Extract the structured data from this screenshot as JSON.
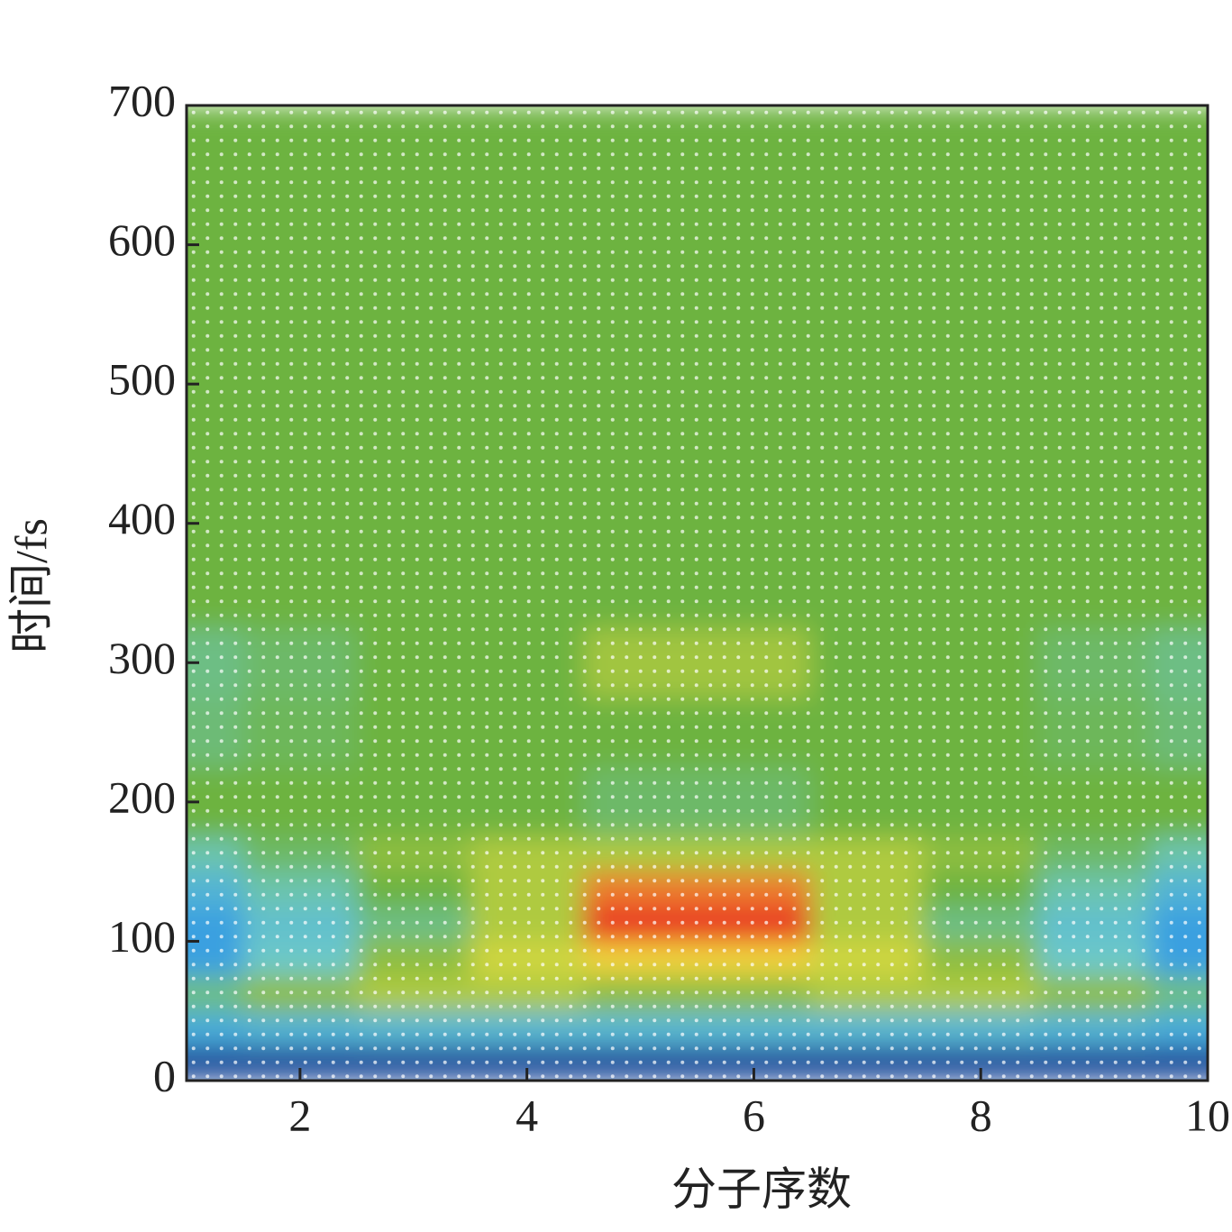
{
  "chart_data": {
    "type": "heatmap",
    "xlabel": "分子序数",
    "ylabel": "时间/fs",
    "x": [
      1,
      2,
      3,
      4,
      5,
      6,
      7,
      8,
      9,
      10
    ],
    "y_edges": [
      0,
      25,
      50,
      75,
      100,
      125,
      150,
      175,
      225,
      275,
      325,
      700
    ],
    "z": [
      [
        0.05,
        0.05,
        0.05,
        0.05,
        0.05,
        0.05,
        0.05,
        0.05,
        0.05,
        0.05
      ],
      [
        0.33,
        0.35,
        0.36,
        0.36,
        0.36,
        0.36,
        0.36,
        0.36,
        0.35,
        0.33
      ],
      [
        0.45,
        0.55,
        0.6,
        0.6,
        0.55,
        0.55,
        0.6,
        0.6,
        0.55,
        0.45
      ],
      [
        0.3,
        0.4,
        0.55,
        0.65,
        0.72,
        0.72,
        0.65,
        0.55,
        0.4,
        0.3
      ],
      [
        0.3,
        0.38,
        0.45,
        0.6,
        0.95,
        0.95,
        0.6,
        0.45,
        0.38,
        0.3
      ],
      [
        0.35,
        0.42,
        0.5,
        0.6,
        0.85,
        0.85,
        0.6,
        0.5,
        0.42,
        0.35
      ],
      [
        0.42,
        0.47,
        0.55,
        0.6,
        0.6,
        0.6,
        0.6,
        0.55,
        0.47,
        0.42
      ],
      [
        0.5,
        0.5,
        0.5,
        0.5,
        0.47,
        0.47,
        0.5,
        0.5,
        0.5,
        0.5
      ],
      [
        0.46,
        0.48,
        0.5,
        0.5,
        0.5,
        0.5,
        0.5,
        0.5,
        0.48,
        0.46
      ],
      [
        0.45,
        0.47,
        0.5,
        0.5,
        0.58,
        0.58,
        0.5,
        0.5,
        0.47,
        0.45
      ],
      [
        0.5,
        0.5,
        0.5,
        0.5,
        0.5,
        0.5,
        0.5,
        0.5,
        0.5,
        0.5
      ]
    ],
    "zlim": [
      0,
      1
    ],
    "colormap": [
      [
        0,
        "#1f3f8f"
      ],
      [
        0.3,
        "#3aa0e0"
      ],
      [
        0.4,
        "#6cc8c8"
      ],
      [
        0.5,
        "#6db33f"
      ],
      [
        0.7,
        "#f0e040"
      ],
      [
        1,
        "#e8141e"
      ]
    ],
    "xlim": [
      1,
      10
    ],
    "xticks": [
      2,
      4,
      6,
      8,
      10
    ],
    "ylim": [
      0,
      700
    ],
    "yticks": [
      0,
      100,
      200,
      300,
      400,
      500,
      600,
      700
    ]
  }
}
